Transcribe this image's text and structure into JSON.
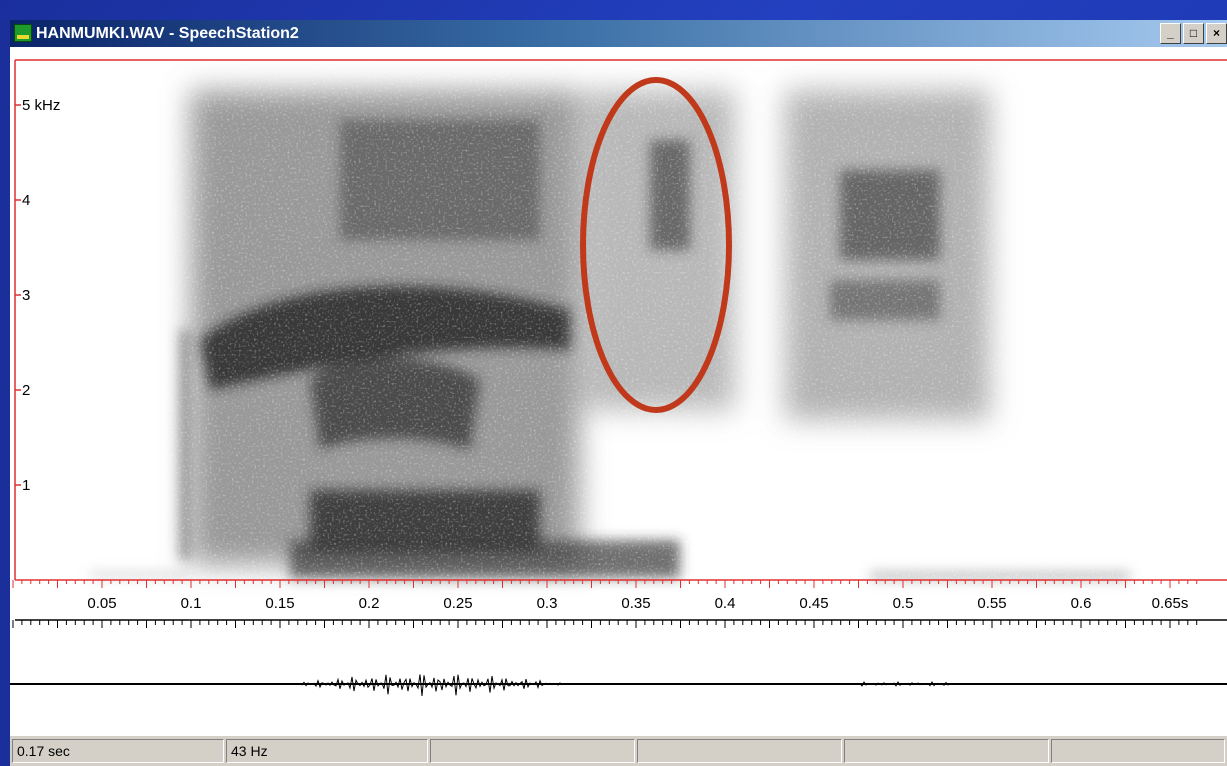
{
  "window": {
    "title": "HANMUMKI.WAV - SpeechStation2",
    "icon": "speechstation-app-icon",
    "controls": {
      "minimize": "_",
      "maximize": "□",
      "close": "×"
    }
  },
  "spectrogram": {
    "frequency_labels": [
      "5 kHz",
      "4",
      "3",
      "2",
      "1"
    ],
    "frequency_values_khz": [
      5,
      4,
      3,
      2,
      1
    ],
    "time_labels": [
      "0.05",
      "0.1",
      "0.15",
      "0.2",
      "0.25",
      "0.3",
      "0.35",
      "0.4",
      "0.45",
      "0.5",
      "0.55",
      "0.6",
      "0.65s"
    ],
    "time_values_s": [
      0.05,
      0.1,
      0.15,
      0.2,
      0.25,
      0.3,
      0.35,
      0.4,
      0.45,
      0.5,
      0.55,
      0.6,
      0.65
    ],
    "axis_color": "#e03030",
    "highlight_color": "#c0391b"
  },
  "status": {
    "time": "0.17 sec",
    "frequency": "43 Hz",
    "empty1": "",
    "empty2": "",
    "empty3": "",
    "empty4": ""
  }
}
